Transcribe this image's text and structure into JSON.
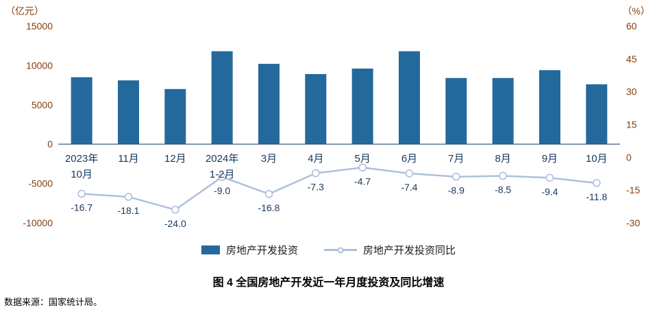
{
  "units": {
    "left": "（亿元）",
    "right": "（%）"
  },
  "legend": {
    "bar": "房地产开发投资",
    "line": "房地产开发投资同比"
  },
  "caption": "图 4 全国房地产开发近一年月度投资及同比增速",
  "source": "数据来源：国家统计局。",
  "colors": {
    "bar": "#24699C",
    "line": "#AEBFDB",
    "axis_text": "#843C0C",
    "label_text": "#17375E",
    "zero_line": "#2E4E6F"
  },
  "chart_data": {
    "type": "bar+line",
    "title": "图 4 全国房地产开发近一年月度投资及同比增速",
    "categories": [
      "2023年\n10月",
      "11月",
      "12月",
      "2024年\n1-2月",
      "3月",
      "4月",
      "5月",
      "6月",
      "7月",
      "8月",
      "9月",
      "10月"
    ],
    "series": [
      {
        "name": "房地产开发投资",
        "type": "bar",
        "axis": "left",
        "unit": "亿元",
        "values": [
          8500,
          8100,
          7000,
          11800,
          10200,
          8900,
          9600,
          11800,
          8400,
          8400,
          9400,
          7600
        ]
      },
      {
        "name": "房地产开发投资同比",
        "type": "line",
        "axis": "right",
        "unit": "%",
        "values": [
          -16.7,
          -18.1,
          -24.0,
          -9.0,
          -16.8,
          -7.3,
          -4.7,
          -7.4,
          -8.9,
          -8.5,
          -9.4,
          -11.8
        ]
      }
    ],
    "left_axis": {
      "label": "亿元",
      "ticks": [
        15000,
        10000,
        5000,
        0,
        -5000,
        -10000
      ],
      "min": -10000,
      "max": 15000
    },
    "right_axis": {
      "label": "%",
      "ticks": [
        60,
        45,
        30,
        15,
        0,
        -15,
        -30
      ],
      "min": -30,
      "max": 60
    },
    "grid": false,
    "legend_position": "bottom"
  }
}
